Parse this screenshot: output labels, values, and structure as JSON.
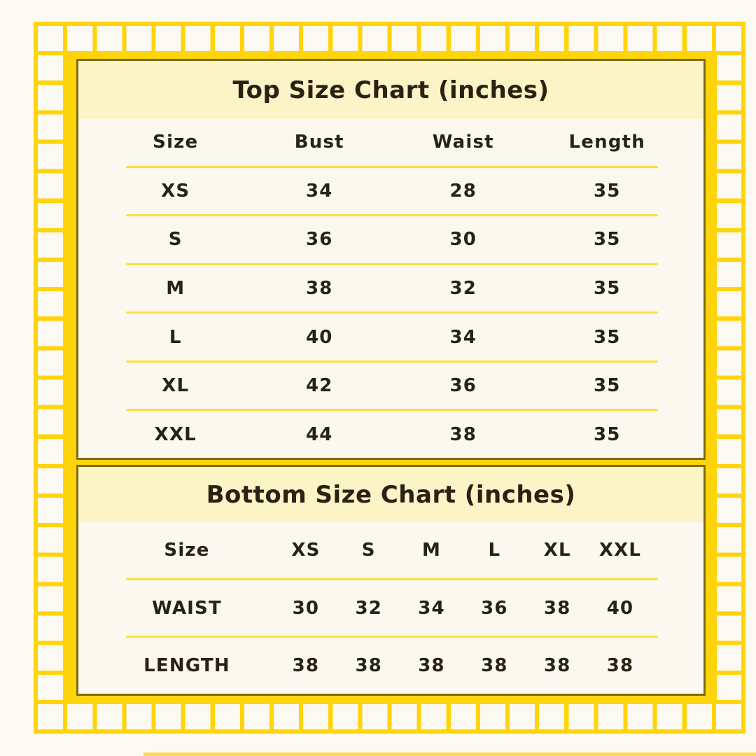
{
  "page": {
    "background": "#FBF9F1",
    "accent_yellow": "#FFD40A",
    "frame_border_color": "#7D6C15",
    "title_band_color": "#FCF3C6",
    "card_background": "#FAF8EF",
    "divider_color": "#FFDF3D",
    "text_color": "#2A2213"
  },
  "chart_data": [
    {
      "type": "table",
      "title": "Top Size Chart (inches)",
      "columns": [
        "Size",
        "Bust",
        "Waist",
        "Length"
      ],
      "rows": [
        [
          "XS",
          "34",
          "28",
          "35"
        ],
        [
          "S",
          "36",
          "30",
          "35"
        ],
        [
          "M",
          "38",
          "32",
          "35"
        ],
        [
          "L",
          "40",
          "34",
          "35"
        ],
        [
          "XL",
          "42",
          "36",
          "35"
        ],
        [
          "XXL",
          "44",
          "38",
          "35"
        ]
      ]
    },
    {
      "type": "table",
      "title": "Bottom Size Chart (inches)",
      "columns": [
        "Size",
        "XS",
        "S",
        "M",
        "L",
        "XL",
        "XXL"
      ],
      "rows": [
        [
          "WAIST",
          "30",
          "32",
          "34",
          "36",
          "38",
          "40"
        ],
        [
          "LENGTH",
          "38",
          "38",
          "38",
          "38",
          "38",
          "38"
        ]
      ]
    }
  ]
}
